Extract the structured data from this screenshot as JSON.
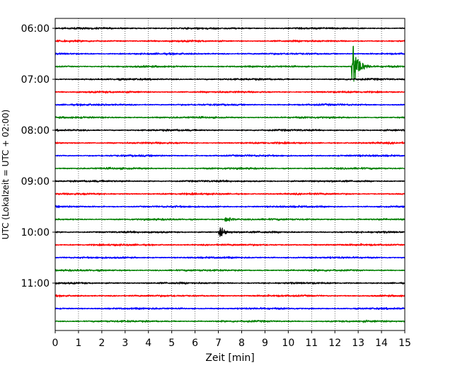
{
  "chart_data": {
    "type": "line",
    "title": "",
    "xlabel": "Zeit  [min]",
    "ylabel": "UTC (Lokalzeit = UTC + 02:00)",
    "xlim": [
      0,
      15
    ],
    "x_ticks": [
      "0",
      "1",
      "2",
      "3",
      "4",
      "5",
      "6",
      "7",
      "8",
      "9",
      "10",
      "11",
      "12",
      "13",
      "14",
      "15"
    ],
    "y_tick_labels": [
      "06:00",
      "07:00",
      "08:00",
      "09:00",
      "10:00",
      "11:00"
    ],
    "grid": "vertical dotted at each minute",
    "trace_interval_minutes": 15,
    "traces": [
      {
        "start": "06:00",
        "color": "#000000"
      },
      {
        "start": "06:15",
        "color": "#ff0000"
      },
      {
        "start": "06:30",
        "color": "#0000ff"
      },
      {
        "start": "06:45",
        "color": "#008000"
      },
      {
        "start": "07:00",
        "color": "#000000"
      },
      {
        "start": "07:15",
        "color": "#ff0000"
      },
      {
        "start": "07:30",
        "color": "#0000ff"
      },
      {
        "start": "07:45",
        "color": "#008000"
      },
      {
        "start": "08:00",
        "color": "#000000"
      },
      {
        "start": "08:15",
        "color": "#ff0000"
      },
      {
        "start": "08:30",
        "color": "#0000ff"
      },
      {
        "start": "08:45",
        "color": "#008000"
      },
      {
        "start": "09:00",
        "color": "#000000"
      },
      {
        "start": "09:15",
        "color": "#ff0000"
      },
      {
        "start": "09:30",
        "color": "#0000ff"
      },
      {
        "start": "09:45",
        "color": "#008000"
      },
      {
        "start": "10:00",
        "color": "#000000"
      },
      {
        "start": "10:15",
        "color": "#ff0000"
      },
      {
        "start": "10:30",
        "color": "#0000ff"
      },
      {
        "start": "10:45",
        "color": "#008000"
      },
      {
        "start": "11:00",
        "color": "#000000"
      },
      {
        "start": "11:15",
        "color": "#ff0000"
      },
      {
        "start": "11:30",
        "color": "#0000ff"
      },
      {
        "start": "11:45",
        "color": "#008000"
      }
    ],
    "events": [
      {
        "trace": "06:45",
        "minute": 12.75,
        "amplitude": "large"
      },
      {
        "trace": "10:00",
        "minute": 7.05,
        "amplitude": "medium"
      },
      {
        "trace": "09:45",
        "minute": 7.3,
        "amplitude": "small"
      }
    ]
  }
}
